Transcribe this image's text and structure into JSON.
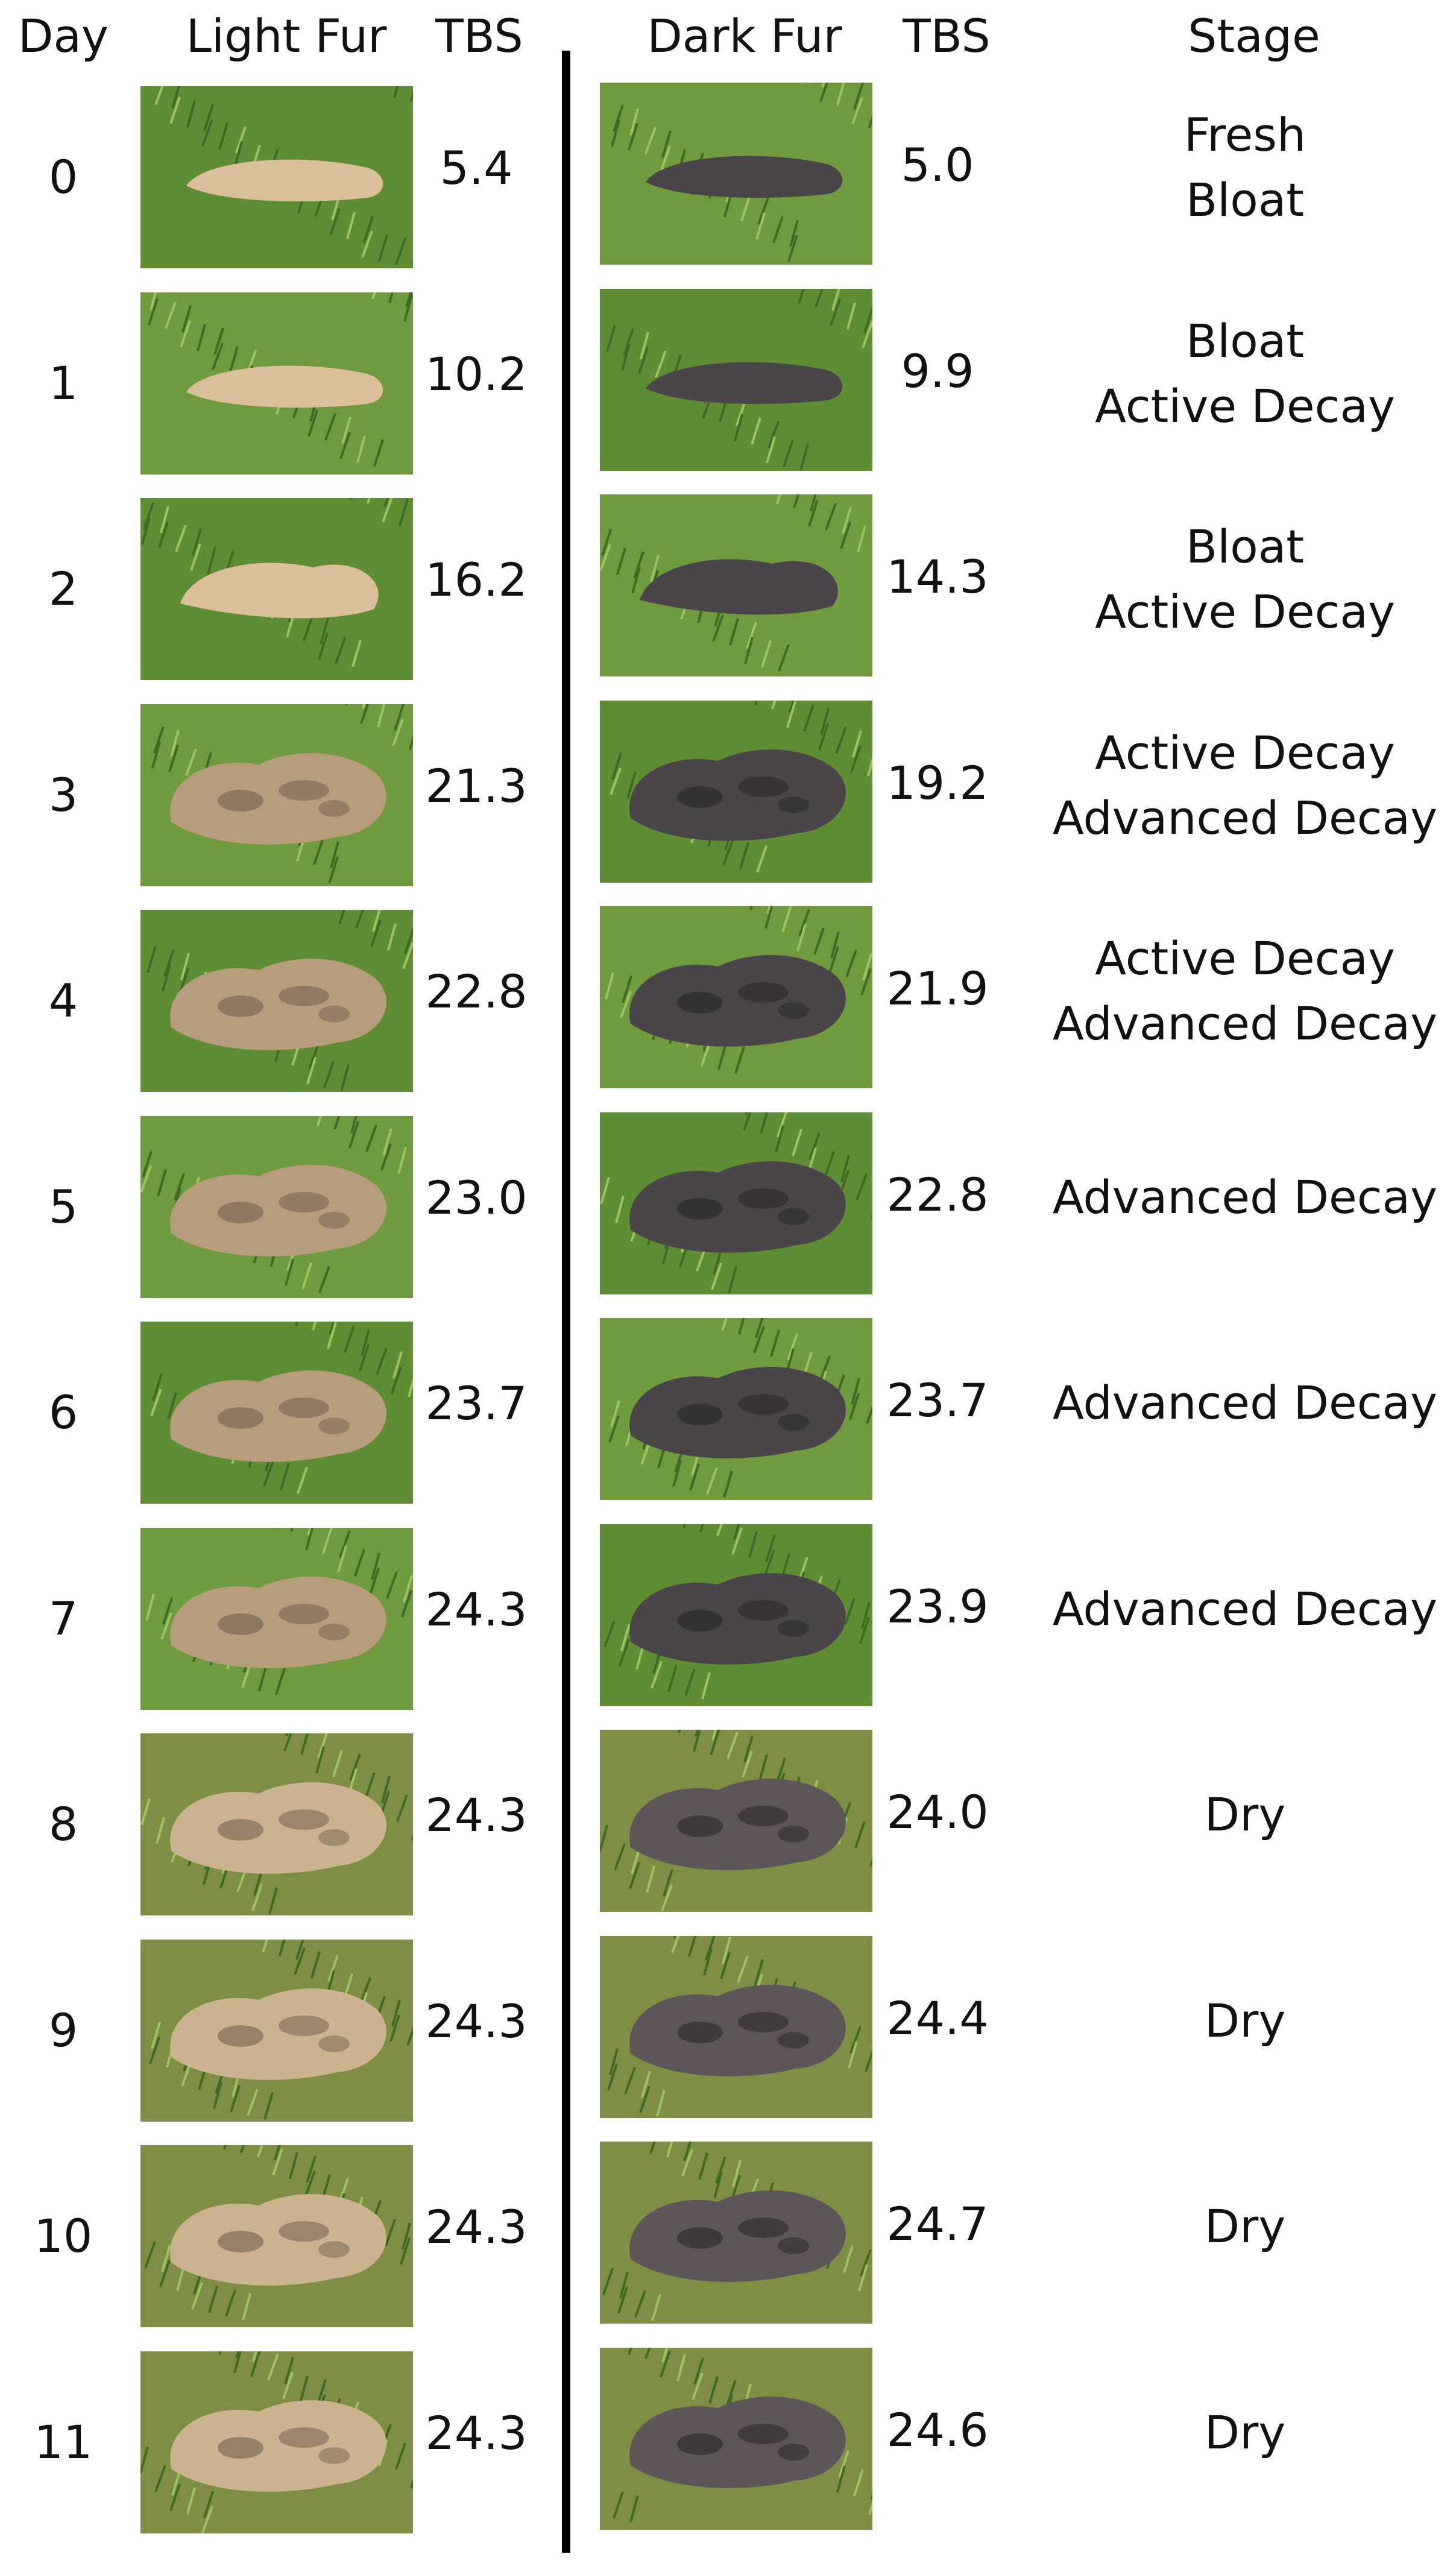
{
  "headers": {
    "day": "Day",
    "light_fur": "Light Fur",
    "tbs_light": "TBS",
    "dark_fur": "Dark Fur",
    "tbs_dark": "TBS",
    "stage": "Stage"
  },
  "rows": [
    {
      "day": "0",
      "tbs_light": "5.4",
      "tbs_dark": "5.0",
      "stage": [
        "Fresh",
        "Bloat"
      ],
      "phase": "intact"
    },
    {
      "day": "1",
      "tbs_light": "10.2",
      "tbs_dark": "9.9",
      "stage": [
        "Bloat",
        "Active Decay"
      ],
      "phase": "intact"
    },
    {
      "day": "2",
      "tbs_light": "16.2",
      "tbs_dark": "14.3",
      "stage": [
        "Bloat",
        "Active Decay"
      ],
      "phase": "early"
    },
    {
      "day": "3",
      "tbs_light": "21.3",
      "tbs_dark": "19.2",
      "stage": [
        "Active Decay",
        "Advanced Decay"
      ],
      "phase": "decay"
    },
    {
      "day": "4",
      "tbs_light": "22.8",
      "tbs_dark": "21.9",
      "stage": [
        "Active Decay",
        "Advanced Decay"
      ],
      "phase": "decay"
    },
    {
      "day": "5",
      "tbs_light": "23.0",
      "tbs_dark": "22.8",
      "stage": [
        "Advanced Decay"
      ],
      "phase": "decay"
    },
    {
      "day": "6",
      "tbs_light": "23.7",
      "tbs_dark": "23.7",
      "stage": [
        "Advanced Decay"
      ],
      "phase": "decay"
    },
    {
      "day": "7",
      "tbs_light": "24.3",
      "tbs_dark": "23.9",
      "stage": [
        "Advanced Decay"
      ],
      "phase": "decay"
    },
    {
      "day": "8",
      "tbs_light": "24.3",
      "tbs_dark": "24.0",
      "stage": [
        "Dry"
      ],
      "phase": "dry"
    },
    {
      "day": "9",
      "tbs_light": "24.3",
      "tbs_dark": "24.4",
      "stage": [
        "Dry"
      ],
      "phase": "dry"
    },
    {
      "day": "10",
      "tbs_light": "24.3",
      "tbs_dark": "24.7",
      "stage": [
        "Dry"
      ],
      "phase": "dry"
    },
    {
      "day": "11",
      "tbs_light": "24.3",
      "tbs_dark": "24.6",
      "stage": [
        "Dry"
      ],
      "phase": "dry"
    }
  ],
  "colors": {
    "grass_light": "#6f9a3e",
    "grass_dark": "#3f6a24",
    "light_fur": "#d9bf9a",
    "dark_fur": "#4a4548",
    "divider": "#000000"
  }
}
